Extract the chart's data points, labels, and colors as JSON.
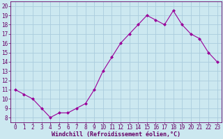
{
  "x": [
    0,
    1,
    2,
    3,
    4,
    5,
    6,
    7,
    8,
    9,
    10,
    11,
    12,
    13,
    14,
    15,
    16,
    17,
    18,
    19,
    20,
    21,
    22,
    23
  ],
  "y": [
    11.0,
    10.5,
    10.0,
    9.0,
    8.0,
    8.5,
    8.5,
    9.0,
    9.5,
    11.0,
    13.0,
    14.5,
    16.0,
    17.0,
    18.0,
    19.0,
    18.5,
    18.0,
    19.5,
    18.0,
    17.0,
    16.5,
    15.0,
    14.0
  ],
  "xlabel": "Windchill (Refroidissement éolien,°C)",
  "xlim": [
    -0.5,
    23.5
  ],
  "ylim": [
    7.5,
    20.5
  ],
  "yticks": [
    8,
    9,
    10,
    11,
    12,
    13,
    14,
    15,
    16,
    17,
    18,
    19,
    20
  ],
  "xticks": [
    0,
    1,
    2,
    3,
    4,
    5,
    6,
    7,
    8,
    9,
    10,
    11,
    12,
    13,
    14,
    15,
    16,
    17,
    18,
    19,
    20,
    21,
    22,
    23
  ],
  "line_color": "#990099",
  "marker": "D",
  "marker_size": 2.0,
  "bg_color": "#cce8f0",
  "grid_color": "#aaccdd",
  "tick_label_color": "#660066",
  "xlabel_color": "#660066",
  "xlabel_fontsize": 6.0,
  "tick_fontsize": 5.5,
  "linewidth": 0.8
}
